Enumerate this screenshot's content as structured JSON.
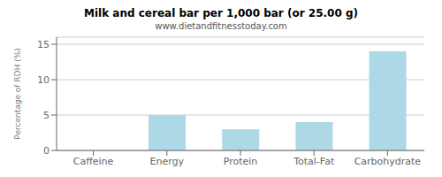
{
  "chart_data": {
    "type": "bar",
    "title": "Milk and cereal bar per 1,000 bar (or 25.00 g)",
    "subtitle": "www.dietandfitnesstoday.com",
    "y_label": "Percentage of RDH (%)",
    "categories": [
      "Caffeine",
      "Energy",
      "Protein",
      "Total-Fat",
      "Carbohydrate"
    ],
    "values": [
      0,
      5.0,
      3.0,
      4.0,
      14.0
    ],
    "color": "#add8e6",
    "ylim": [
      0,
      16
    ],
    "yticks": [
      0,
      5,
      10,
      15
    ],
    "grid": true
  }
}
